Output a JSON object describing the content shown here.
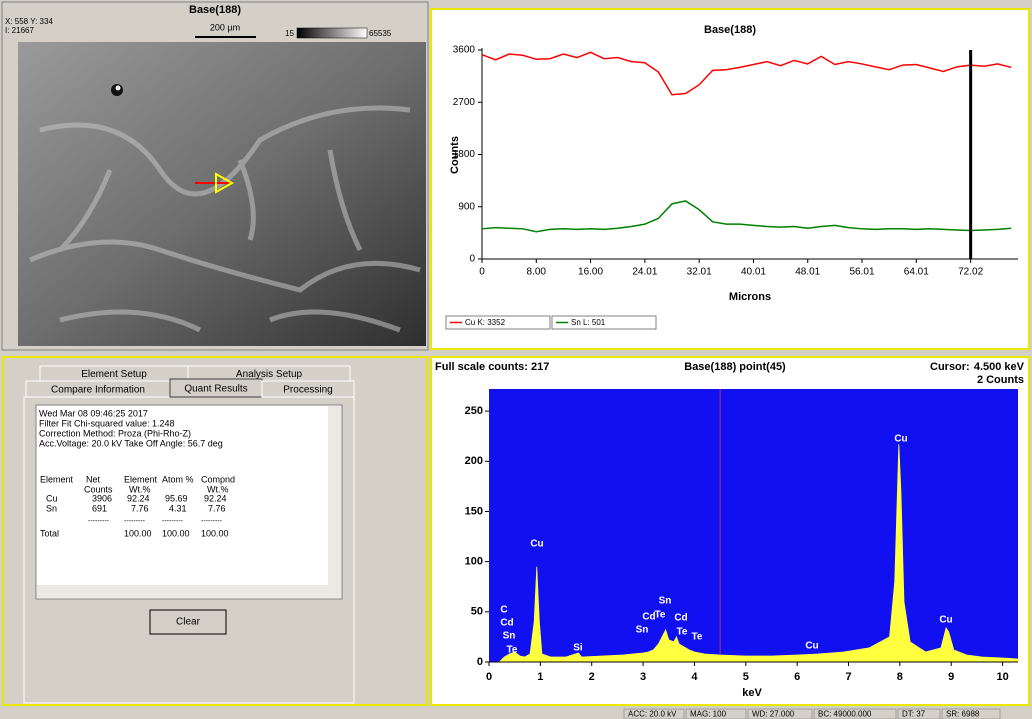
{
  "image_panel": {
    "title": "Base(188)",
    "coords": "X: 558 Y: 334",
    "intensity": "I: 21667",
    "scale": "200 µm",
    "range_min": "15",
    "range_max": "65535"
  },
  "chart_data": [
    {
      "type": "line",
      "title": "Base(188)",
      "y_label": "Counts",
      "x_label": "Microns",
      "x": [
        0,
        2,
        4,
        6,
        8,
        10,
        12,
        14,
        16,
        18,
        20,
        22,
        24,
        26,
        28,
        30,
        32,
        34,
        36,
        38,
        40,
        42,
        44,
        46,
        48,
        50,
        52,
        54,
        56,
        58,
        60,
        62,
        64,
        66,
        68,
        70,
        72,
        74,
        76,
        78
      ],
      "series": [
        {
          "name": "Cu K: 3352",
          "color": "#ff0000",
          "values": [
            3520,
            3430,
            3530,
            3510,
            3440,
            3450,
            3530,
            3470,
            3560,
            3450,
            3470,
            3400,
            3380,
            3220,
            2830,
            2850,
            3000,
            3250,
            3260,
            3300,
            3350,
            3400,
            3330,
            3420,
            3360,
            3490,
            3350,
            3400,
            3360,
            3310,
            3260,
            3340,
            3350,
            3290,
            3230,
            3310,
            3340,
            3320,
            3360,
            3300
          ]
        },
        {
          "name": "Sn L: 501",
          "color": "#008000",
          "values": [
            520,
            540,
            530,
            520,
            470,
            510,
            520,
            510,
            520,
            510,
            530,
            560,
            600,
            700,
            950,
            1000,
            850,
            640,
            600,
            600,
            580,
            560,
            550,
            560,
            530,
            560,
            580,
            540,
            520,
            510,
            520,
            520,
            510,
            520,
            510,
            500,
            490,
            500,
            510,
            530
          ]
        }
      ],
      "xlim": [
        0,
        79
      ],
      "ylim": [
        0,
        3600
      ],
      "xticks": [
        0,
        {
          "value": 8,
          "label": "8.00"
        },
        {
          "value": 16,
          "label": "16.00"
        },
        {
          "value": 24.01,
          "label": "24.01"
        },
        {
          "value": 32.01,
          "label": "32.01"
        },
        {
          "value": 40.01,
          "label": "40.01"
        },
        {
          "value": 48.01,
          "label": "48.01"
        },
        {
          "value": 56.01,
          "label": "56.01"
        },
        {
          "value": 64.01,
          "label": "64.01"
        },
        {
          "value": 72.02,
          "label": "72.02"
        }
      ],
      "yticks": [
        0,
        900,
        1800,
        2700,
        3600
      ],
      "cursor": 72.02
    },
    {
      "type": "area",
      "title": "Base(188) point(45)",
      "full_scale": "Full scale counts: 217",
      "cursor_label": "Cursor:",
      "cursor_kev": "4.500 keV",
      "cursor_counts": "2 Counts",
      "x_label": "keV",
      "color": "#ffff40",
      "background": "#1010f0",
      "cursor": 4.5,
      "x": [
        0.2,
        0.3,
        0.4,
        0.5,
        0.6,
        0.7,
        0.8,
        0.88,
        0.93,
        0.98,
        1.03,
        1.2,
        1.5,
        1.74,
        1.8,
        2.2,
        2.6,
        3.0,
        3.1,
        3.2,
        3.3,
        3.44,
        3.5,
        3.6,
        3.65,
        3.7,
        3.8,
        3.9,
        4.0,
        4.2,
        4.5,
        5.0,
        5.5,
        6.0,
        6.4,
        6.9,
        7.4,
        7.8,
        7.9,
        7.98,
        8.02,
        8.08,
        8.2,
        8.5,
        8.8,
        8.9,
        8.95,
        9.05,
        9.3,
        9.6,
        10.0,
        10.3
      ],
      "values": [
        0,
        5,
        8,
        10,
        6,
        5,
        8,
        40,
        95,
        40,
        8,
        5,
        5,
        9,
        5,
        6,
        7,
        9,
        10,
        12,
        18,
        32,
        22,
        20,
        25,
        18,
        15,
        12,
        10,
        8,
        7,
        6,
        6,
        7,
        8,
        10,
        14,
        25,
        80,
        217,
        170,
        60,
        20,
        10,
        14,
        34,
        30,
        12,
        7,
        5,
        4,
        3
      ],
      "xlim": [
        0,
        10.3
      ],
      "ylim": [
        0,
        272
      ],
      "xticks": [
        0,
        1,
        2,
        3,
        4,
        5,
        6,
        7,
        8,
        9,
        10
      ],
      "yticks": [
        0,
        50,
        100,
        150,
        200,
        250
      ],
      "peak_labels": [
        "C",
        "Cd",
        "Sn",
        "Te",
        "Cu",
        "Si",
        "Sn",
        "Cd",
        "Sn",
        "Te",
        "Cd",
        "Te",
        "Te",
        "Cu",
        "Cu",
        "Cu"
      ]
    }
  ],
  "tabs": [
    "Element Setup",
    "Analysis Setup",
    "Compare Information",
    "Quant Results",
    "Processing"
  ],
  "quant": {
    "info": [
      "Wed Mar 08 09:46:25 2017",
      "Filter Fit   Chi-squared value:  1.248",
      "Correction Method:  Proza (Phi-Rho-Z)",
      "Acc.Voltage: 20.0 kV  Take Off Angle: 56.7 deg"
    ],
    "header": [
      "Element",
      "Net",
      "Element",
      "Atom %",
      "Compnd"
    ],
    "subheader": [
      "Counts",
      "Wt.%",
      "Wt.%"
    ],
    "rows": [
      [
        "Cu",
        "3906",
        "92.24",
        "95.69",
        "92.24"
      ],
      [
        "Sn",
        "691",
        "7.76",
        "4.31",
        "7.76"
      ]
    ],
    "separator": "---------",
    "total": [
      "Total",
      "100.00",
      "100.00",
      "100.00"
    ],
    "button": "Clear"
  },
  "status_bar": [
    "ACC: 20.0 kV",
    "MAG: 100",
    "WD: 27.000",
    "BC: 49000.000",
    "DT: 37",
    "SR: 6988"
  ]
}
